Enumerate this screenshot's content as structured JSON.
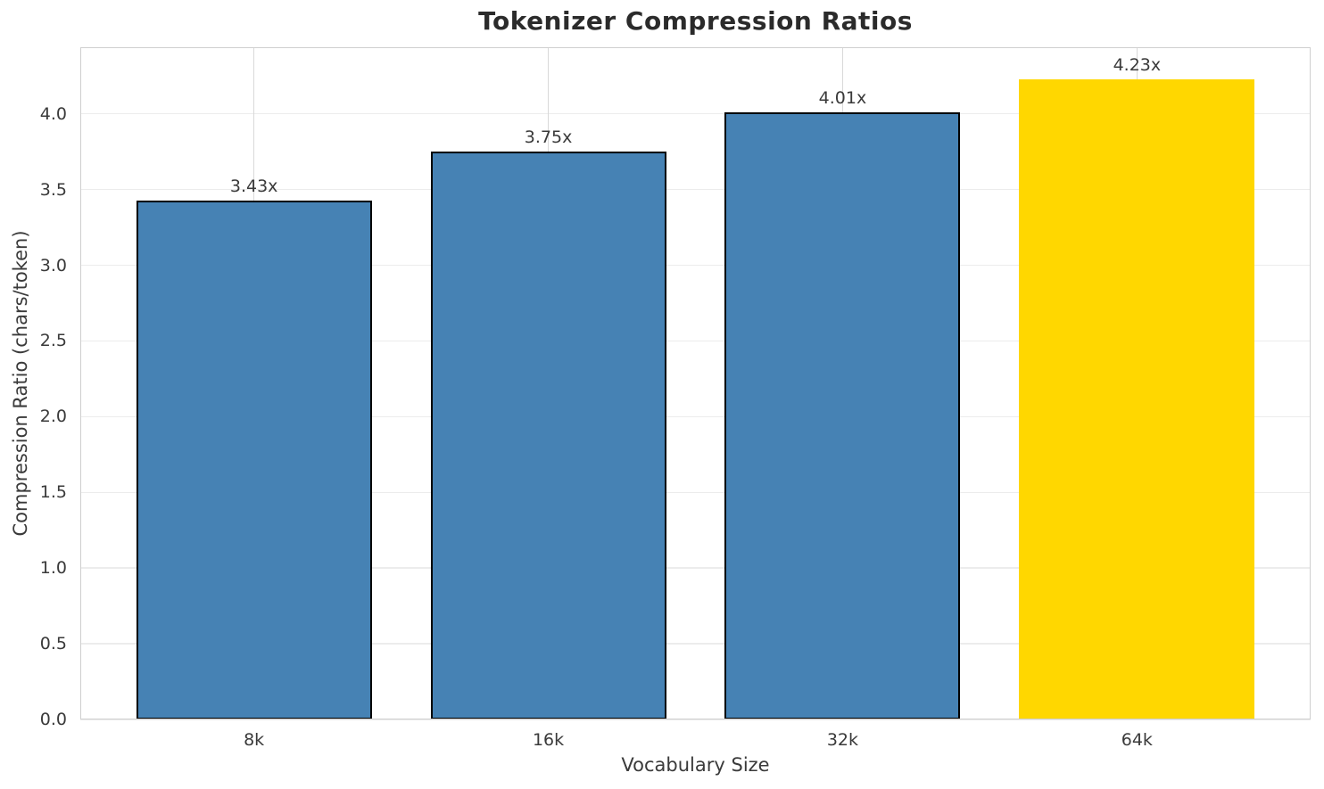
{
  "chart_data": {
    "type": "bar",
    "title": "Tokenizer Compression Ratios",
    "xlabel": "Vocabulary Size",
    "ylabel": "Compression Ratio (chars/token)",
    "categories": [
      "8k",
      "16k",
      "32k",
      "64k"
    ],
    "values": [
      3.43,
      3.75,
      4.01,
      4.23
    ],
    "value_labels": [
      "3.43x",
      "3.75x",
      "4.01x",
      "4.23x"
    ],
    "bar_colors": [
      "#4682B4",
      "#4682B4",
      "#4682B4",
      "#FFD700"
    ],
    "bar_edge_colors": [
      "#000000",
      "#000000",
      "#000000",
      "none"
    ],
    "bar_edge_width": 2,
    "yticks": [
      0.0,
      0.5,
      1.0,
      1.5,
      2.0,
      2.5,
      3.0,
      3.5,
      4.0
    ],
    "ylim": [
      0,
      4.44
    ],
    "xlim": [
      -0.59,
      3.59
    ],
    "bar_width": 0.8,
    "grid": true,
    "legend": "none"
  },
  "colors": {
    "background": "#ffffff",
    "grid_horizontal": "#ececec",
    "grid_vertical": "#d9d9d9",
    "spine": "#cfcfcf",
    "text": "#3a3a3a",
    "title": "#2b2b2b"
  }
}
